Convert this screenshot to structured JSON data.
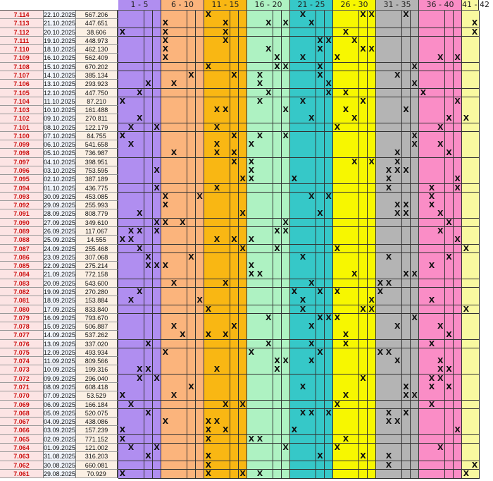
{
  "colors": {
    "id_text": "#cc1010",
    "header_bg": "#ffffff",
    "row_bg": [
      "#fde8e8",
      "#e8f0fb",
      "#e8f5e0",
      "#fdfdf0"
    ],
    "groups": [
      "#b08ef0",
      "#fbb47c",
      "#f9b713",
      "#aef2c2",
      "#36c8c8",
      "#f7f700",
      "#b4b4b4",
      "#fa8dc6",
      "#f9f9a0"
    ]
  },
  "groups": [
    {
      "label": "1 - 5"
    },
    {
      "label": "6 - 10"
    },
    {
      "label": "11 - 15"
    },
    {
      "label": "16 - 20"
    },
    {
      "label": "21 - 25"
    },
    {
      "label": "26 - 30"
    },
    {
      "label": "31 - 35"
    },
    {
      "label": "36 - 40"
    },
    {
      "label": "41 - 42"
    }
  ],
  "mark_text": "X",
  "rows": [
    {
      "id": "7.114",
      "date": "22.10.2025",
      "value": "567.206",
      "marks": [
        11,
        22,
        29,
        30,
        34
      ]
    },
    {
      "id": "7.113",
      "date": "21.10.2025",
      "value": "447.651",
      "marks": [
        6,
        13,
        18,
        20,
        23,
        42
      ]
    },
    {
      "id": "7.112",
      "date": "20.10.2025",
      "value": "38.606",
      "marks": [
        1,
        6,
        13,
        27,
        42
      ]
    },
    {
      "id": "7.111",
      "date": "19.10.2025",
      "value": "448.973",
      "marks": [
        6,
        13,
        24,
        25,
        28
      ]
    },
    {
      "id": "7.110",
      "date": "18.10.2025",
      "value": "462.130",
      "marks": [
        6,
        18,
        24,
        29,
        30
      ]
    },
    {
      "id": "7.109",
      "date": "16.10.2025",
      "value": "562.409",
      "marks": [
        6,
        19,
        22,
        26,
        38,
        40
      ]
    },
    {
      "id": "7.108",
      "date": "15.10.2025",
      "value": "670.202",
      "marks": [
        11,
        19,
        20,
        24,
        35
      ]
    },
    {
      "id": "7.107",
      "date": "14.10.2025",
      "value": "385.134",
      "marks": [
        9,
        14,
        17,
        24,
        33
      ]
    },
    {
      "id": "7.106",
      "date": "13.10.2025",
      "value": "293.923",
      "marks": [
        4,
        7,
        17,
        25,
        35
      ]
    },
    {
      "id": "7.105",
      "date": "12.10.2025",
      "value": "447.750",
      "marks": [
        3,
        18,
        25,
        27,
        36
      ]
    },
    {
      "id": "7.104",
      "date": "11.10.2025",
      "value": "87.210",
      "marks": [
        1,
        17,
        22,
        29,
        40
      ]
    },
    {
      "id": "7.103",
      "date": "10.10.2025",
      "value": "161.488",
      "marks": [
        12,
        13,
        20,
        27,
        34
      ]
    },
    {
      "id": "7.102",
      "date": "09.10.2025",
      "value": "270.811",
      "marks": [
        3,
        23,
        28,
        39,
        41
      ]
    },
    {
      "id": "7.101",
      "date": "08.10.2025",
      "value": "122.179",
      "marks": [
        2,
        5,
        12,
        26,
        38
      ]
    },
    {
      "id": "7.100",
      "date": "07.10.2025",
      "value": "84.755",
      "marks": [
        1,
        14,
        17,
        20,
        35
      ]
    },
    {
      "id": "7.099",
      "date": "06.10.2025",
      "value": "541.658",
      "marks": [
        2,
        12,
        16,
        35,
        38
      ]
    },
    {
      "id": "7.098",
      "date": "05.10.2025",
      "value": "736.987",
      "marks": [
        7,
        12,
        14,
        33,
        39
      ]
    },
    {
      "id": "7.097",
      "date": "04.10.2025",
      "value": "398.951",
      "marks": [
        14,
        16,
        28,
        30,
        33
      ]
    },
    {
      "id": "7.096",
      "date": "03.10.2025",
      "value": "753.595",
      "marks": [
        5,
        16,
        32,
        33,
        34
      ]
    },
    {
      "id": "7.095",
      "date": "02.10.2025",
      "value": "387.189",
      "marks": [
        15,
        16,
        21,
        32,
        40
      ]
    },
    {
      "id": "7.094",
      "date": "01.10.2025",
      "value": "436.775",
      "marks": [
        5,
        12,
        32,
        37,
        40
      ]
    },
    {
      "id": "7.093",
      "date": "30.09.2025",
      "value": "453.085",
      "marks": [
        6,
        10,
        23,
        25,
        37
      ]
    },
    {
      "id": "7.092",
      "date": "29.09.2025",
      "value": "255.993",
      "marks": [
        6,
        33,
        34,
        37
      ]
    },
    {
      "id": "7.091",
      "date": "28.09.2025",
      "value": "808.779",
      "marks": [
        3,
        15,
        24,
        33,
        34,
        38
      ]
    },
    {
      "id": "7.090",
      "date": "27.09.2025",
      "value": "349.610",
      "marks": [
        5,
        6,
        8,
        20,
        39
      ]
    },
    {
      "id": "7.089",
      "date": "26.09.2025",
      "value": "117.067",
      "marks": [
        2,
        3,
        5,
        19,
        20,
        38
      ]
    },
    {
      "id": "7.088",
      "date": "25.09.2025",
      "value": "14.555",
      "marks": [
        1,
        2,
        12,
        14,
        16,
        40
      ]
    },
    {
      "id": "7.087",
      "date": "24.09.2025",
      "value": "255.468",
      "marks": [
        3,
        15,
        19,
        26,
        41
      ]
    },
    {
      "id": "7.086",
      "date": "23.09.2025",
      "value": "307.068",
      "marks": [
        4,
        9,
        22,
        32,
        39
      ]
    },
    {
      "id": "7.085",
      "date": "22.09.2025",
      "value": "275.214",
      "marks": [
        4,
        5,
        6,
        16,
        37
      ]
    },
    {
      "id": "7.084",
      "date": "21.09.2025",
      "value": "772.158",
      "marks": [
        16,
        17,
        28,
        34,
        35
      ]
    },
    {
      "id": "7.083",
      "date": "20.09.2025",
      "value": "543.600",
      "marks": [
        7,
        13,
        23,
        31,
        32
      ]
    },
    {
      "id": "7.082",
      "date": "19.09.2025",
      "value": "270.280",
      "marks": [
        3,
        21,
        24,
        26,
        31
      ]
    },
    {
      "id": "7.081",
      "date": "18.09.2025",
      "value": "153.884",
      "marks": [
        2,
        10,
        22,
        30,
        37
      ]
    },
    {
      "id": "7.080",
      "date": "17.09.2025",
      "value": "833.840",
      "marks": [
        11,
        22,
        29,
        30,
        41
      ]
    },
    {
      "id": "7.079",
      "date": "16.09.2025",
      "value": "793.670",
      "marks": [
        18,
        24,
        25,
        26,
        35
      ]
    },
    {
      "id": "7.078",
      "date": "15.09.2025",
      "value": "506.887",
      "marks": [
        7,
        14,
        23,
        33,
        38
      ]
    },
    {
      "id": "7.077",
      "date": "14.09.2025",
      "value": "537.262",
      "marks": [
        8,
        11,
        13,
        27,
        39
      ]
    },
    {
      "id": "7.076",
      "date": "13.09.2025",
      "value": "337.020",
      "marks": [
        4,
        18,
        23,
        27,
        37
      ]
    },
    {
      "id": "7.075",
      "date": "12.09.2025",
      "value": "493.934",
      "marks": [
        6,
        16,
        24,
        31,
        32
      ]
    },
    {
      "id": "7.074",
      "date": "11.09.2025",
      "value": "809.566",
      "marks": [
        19,
        20,
        23,
        33,
        38
      ]
    },
    {
      "id": "7.073",
      "date": "10.09.2025",
      "value": "199.316",
      "marks": [
        3,
        4,
        12,
        19,
        38,
        39
      ]
    },
    {
      "id": "7.072",
      "date": "09.09.2025",
      "value": "296.040",
      "marks": [
        3,
        5,
        29,
        37,
        38
      ]
    },
    {
      "id": "7.071",
      "date": "08.09.2025",
      "value": "608.418",
      "marks": [
        9,
        22,
        34,
        37,
        39
      ]
    },
    {
      "id": "7.070",
      "date": "07.09.2025",
      "value": "53.529",
      "marks": [
        1,
        7,
        27,
        34,
        35
      ]
    },
    {
      "id": "7.069",
      "date": "06.09.2025",
      "value": "166.184",
      "marks": [
        2,
        13,
        15,
        26,
        37
      ]
    },
    {
      "id": "7.068",
      "date": "05.09.2025",
      "value": "520.075",
      "marks": [
        4,
        22,
        23,
        25,
        32,
        34
      ]
    },
    {
      "id": "7.067",
      "date": "04.09.2025",
      "value": "438.086",
      "marks": [
        6,
        11,
        12,
        32,
        33
      ]
    },
    {
      "id": "7.066",
      "date": "03.09.2025",
      "value": "157.239",
      "marks": [
        1,
        11,
        13,
        21,
        40
      ]
    },
    {
      "id": "7.065",
      "date": "02.09.2025",
      "value": "771.152",
      "marks": [
        1,
        11,
        16,
        17,
        27
      ]
    },
    {
      "id": "7.064",
      "date": "01.09.2025",
      "value": "121.002",
      "marks": [
        2,
        5,
        20,
        26,
        38
      ]
    },
    {
      "id": "7.063",
      "date": "31.08.2025",
      "value": "316.203",
      "marks": [
        4,
        11,
        24,
        29,
        32
      ]
    },
    {
      "id": "7.062",
      "date": "30.08.2025",
      "value": "660.081",
      "marks": [
        11,
        32,
        42
      ]
    },
    {
      "id": "7.061",
      "date": "29.08.2025",
      "value": "70.929",
      "marks": [
        1,
        11,
        15,
        17,
        41
      ]
    }
  ]
}
